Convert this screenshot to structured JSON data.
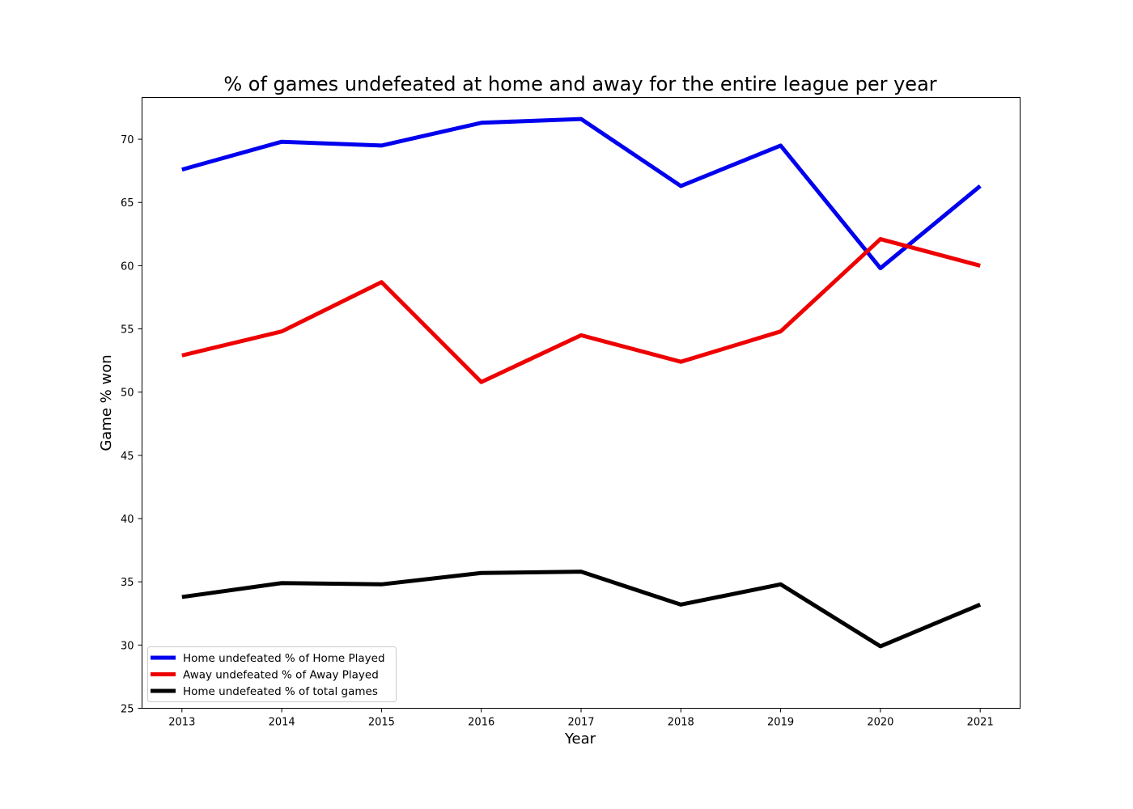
{
  "chart_data": {
    "type": "line",
    "title": "% of games undefeated at home and away for the entire league per year",
    "xlabel": "Year",
    "ylabel": "Game % won",
    "x": [
      2013,
      2014,
      2015,
      2016,
      2017,
      2018,
      2019,
      2020,
      2021
    ],
    "x_tick_labels": [
      "2013",
      "2014",
      "2015",
      "2016",
      "2017",
      "2018",
      "2019",
      "2020",
      "2021"
    ],
    "y_ticks": [
      25,
      30,
      35,
      40,
      45,
      50,
      55,
      60,
      65,
      70
    ],
    "y_tick_labels": [
      "25",
      "30",
      "35",
      "40",
      "45",
      "50",
      "55",
      "60",
      "65",
      "70"
    ],
    "ylim": [
      25,
      73.3
    ],
    "xlim": [
      2012.6,
      2021.4
    ],
    "grid": false,
    "legend_position": "lower-left",
    "series": [
      {
        "name": "Home undefeated % of Home Played",
        "color": "#0000ee",
        "values": [
          67.6,
          69.8,
          69.5,
          71.3,
          71.6,
          66.3,
          69.5,
          59.8,
          66.3
        ]
      },
      {
        "name": "Away undefeated % of Away Played",
        "color": "#ee0000",
        "values": [
          52.9,
          54.8,
          58.7,
          50.8,
          54.5,
          52.4,
          54.8,
          62.1,
          60.0
        ]
      },
      {
        "name": "Home undefeated % of total games",
        "color": "#000000",
        "values": [
          33.8,
          34.9,
          34.8,
          35.7,
          35.8,
          33.2,
          34.8,
          29.9,
          33.2
        ]
      }
    ]
  }
}
